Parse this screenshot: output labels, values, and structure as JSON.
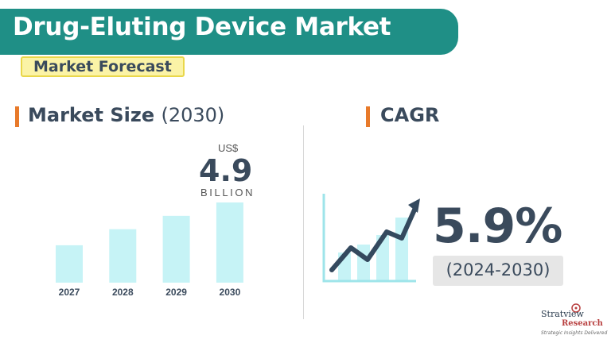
{
  "header": {
    "title": "Drug-Eluting Device Market",
    "subtitle": "Market Forecast"
  },
  "market_size": {
    "heading": "Market Size",
    "heading_year": "(2030)",
    "currency": "US$",
    "value": "4.9",
    "unit": "BILLION"
  },
  "cagr": {
    "heading": "CAGR",
    "value": "5.9%",
    "period": "(2024-2030)"
  },
  "logo": {
    "name": "Stratview",
    "name2": "Research",
    "tagline": "Strategic Insights Delivered"
  },
  "colors": {
    "banner": "#1f8f86",
    "bar": "#c6f3f6",
    "accent": "#e87a2a",
    "text": "#3a4a5c"
  },
  "chart_data": {
    "type": "bar",
    "categories": [
      "2027",
      "2028",
      "2029",
      "2030"
    ],
    "values": [
      4.1,
      4.4,
      4.65,
      4.9
    ],
    "ylim": [
      3.4,
      4.9
    ],
    "data_labels": {
      "2030": "4.9"
    }
  }
}
